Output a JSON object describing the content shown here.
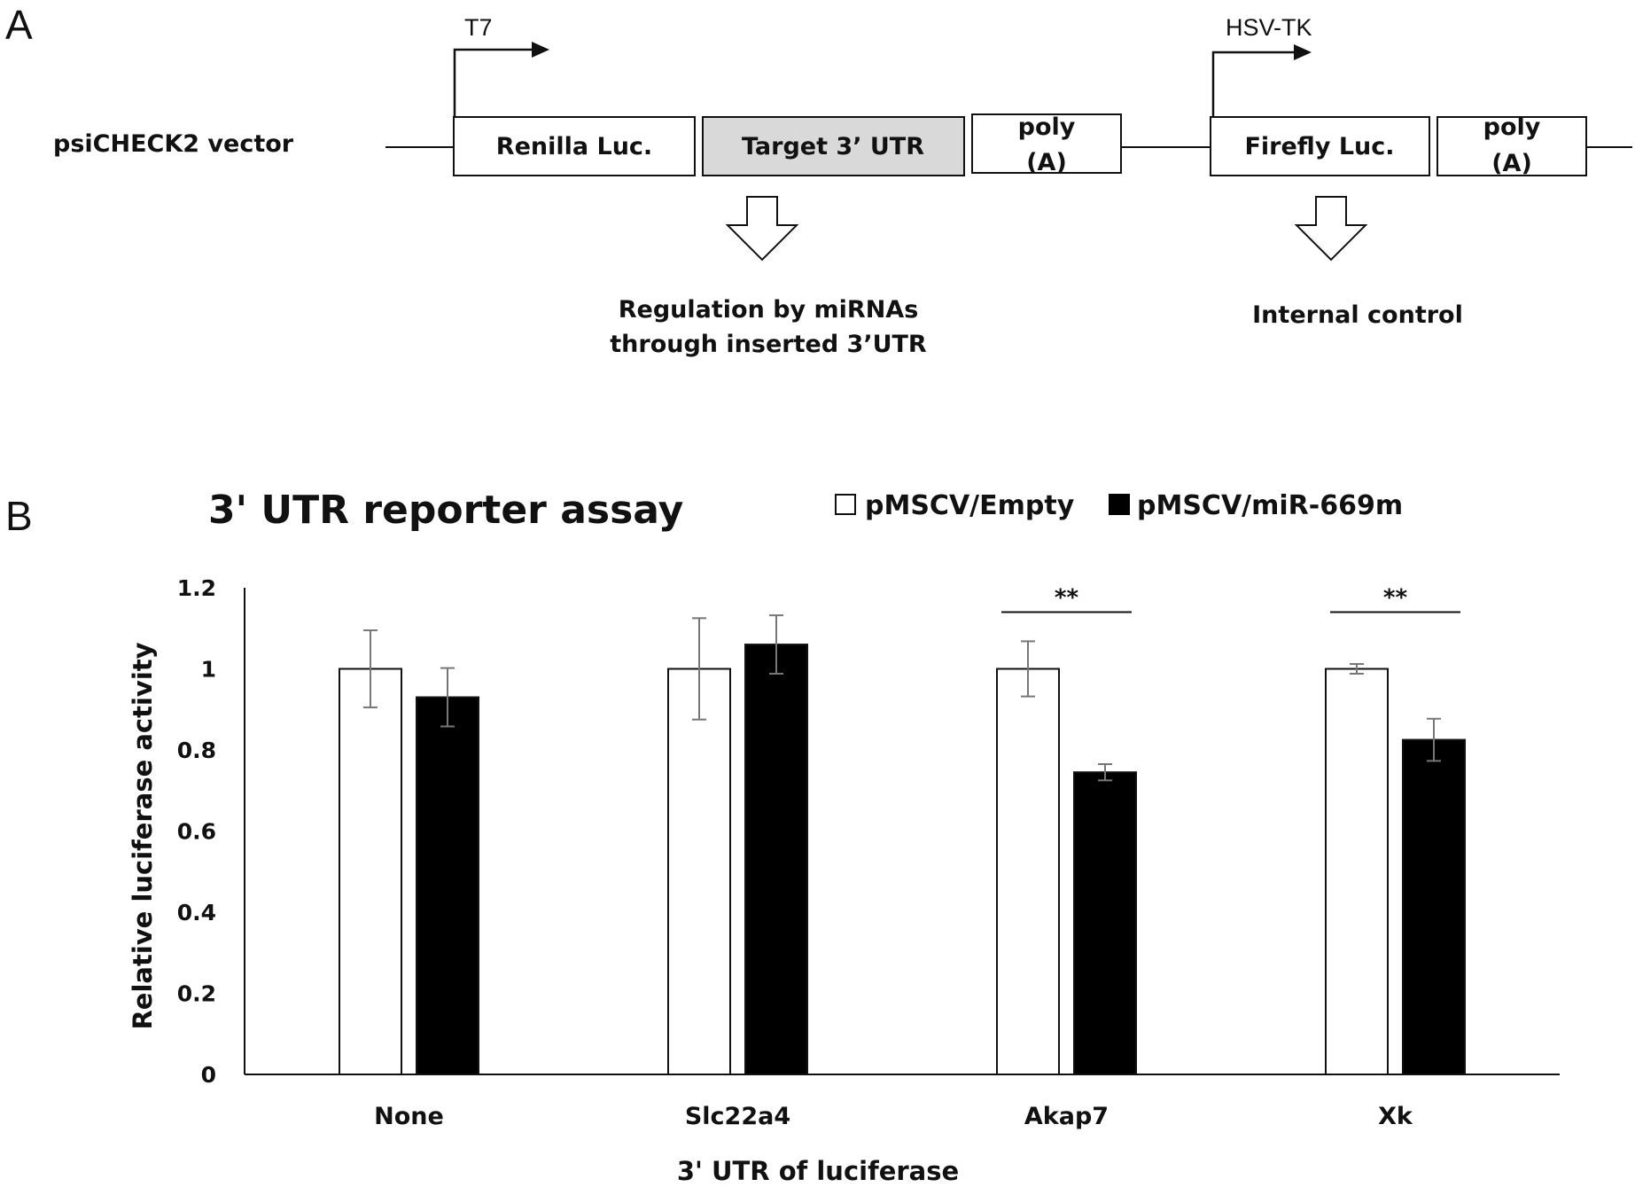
{
  "panel_a": {
    "letter": "A",
    "vector_label": "psiCHECK2 vector",
    "promoters": {
      "t7": "T7",
      "hsv_tk": "HSV-TK"
    },
    "boxes": {
      "renilla": "Renilla Luc.",
      "target": "Target 3’ UTR",
      "poly_a_1": [
        "poly",
        "(A)"
      ],
      "firefly": "Firefly Luc.",
      "poly_a_2": [
        "poly",
        "(A)"
      ]
    },
    "notes": {
      "regulation": [
        "Regulation by miRNAs",
        "through inserted 3’UTR"
      ],
      "internal": "Internal control"
    },
    "colors": {
      "target_fill": "#d9d9d9",
      "box_fill": "#ffffff",
      "stroke": "#111111"
    }
  },
  "panel_b": {
    "letter": "B"
  },
  "chart_data": {
    "type": "bar",
    "title": "3' UTR reporter assay",
    "xlabel": "3' UTR of luciferase",
    "ylabel": "Relative luciferase activity",
    "ylim": [
      0,
      1.2
    ],
    "yticks": [
      "0",
      "0.2",
      "0.4",
      "0.6",
      "0.8",
      "1",
      "1.2"
    ],
    "categories": [
      "None",
      "Slc22a4",
      "Akap7",
      "Xk"
    ],
    "legend_position": "top-right",
    "grid": false,
    "series": [
      {
        "name": "pMSCV/Empty",
        "color": "#ffffff",
        "values": [
          1.0,
          1.0,
          1.0,
          1.0
        ],
        "errors": [
          0.095,
          0.125,
          0.068,
          0.012
        ]
      },
      {
        "name": "pMSCV/miR-669m",
        "color": "#000000",
        "values": [
          0.93,
          1.06,
          0.745,
          0.825
        ],
        "errors": [
          0.072,
          0.072,
          0.02,
          0.052
        ]
      }
    ],
    "significance": [
      {
        "category": "Akap7",
        "label": "**",
        "y": 1.14
      },
      {
        "category": "Xk",
        "label": "**",
        "y": 1.14
      }
    ]
  }
}
